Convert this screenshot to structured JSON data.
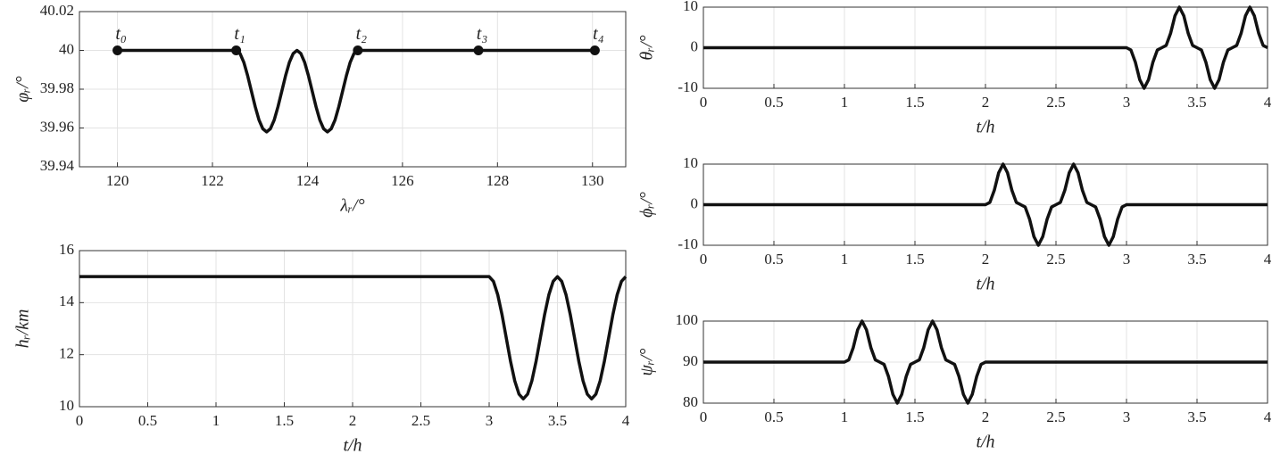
{
  "chart_data": [
    {
      "type": "line",
      "xlabel": "λᵣ/°",
      "ylabel": "φᵣ/°",
      "grid": true,
      "xlim": [
        119.2,
        130.7
      ],
      "ylim": [
        39.94,
        40.02
      ],
      "xticks": [
        120,
        122,
        124,
        126,
        128,
        130
      ],
      "yticks": [
        39.94,
        39.96,
        39.98,
        40,
        40.02
      ],
      "x": [
        120,
        122.5,
        122.58,
        122.66,
        122.74,
        122.82,
        122.9,
        122.98,
        123.06,
        123.14,
        123.22,
        123.3,
        123.38,
        123.46,
        123.54,
        123.62,
        123.7,
        123.78,
        123.86,
        123.94,
        124.02,
        124.1,
        124.18,
        124.26,
        124.34,
        124.42,
        124.5,
        124.58,
        124.66,
        124.74,
        124.82,
        124.9,
        124.98,
        125.06,
        130.05
      ],
      "series": [
        {
          "color": "#111111",
          "values": [
            40,
            40,
            39.9984,
            39.9939,
            39.987,
            39.979,
            39.971,
            39.9641,
            39.9596,
            39.958,
            39.9596,
            39.9641,
            39.971,
            39.979,
            39.987,
            39.9939,
            39.9984,
            40,
            39.9984,
            39.9939,
            39.987,
            39.979,
            39.971,
            39.9641,
            39.9596,
            39.958,
            39.9596,
            39.9641,
            39.971,
            39.979,
            39.987,
            39.9939,
            39.9984,
            40,
            40
          ]
        }
      ],
      "markers": {
        "x": [
          120,
          122.5,
          125.06,
          127.6,
          130.05
        ],
        "y": [
          40,
          40,
          40,
          40,
          40
        ],
        "labels": [
          "t₀",
          "t₁",
          "t₂",
          "t₃",
          "t₄"
        ]
      }
    },
    {
      "type": "line",
      "xlabel": "t/h",
      "ylabel": "hᵣ/km",
      "grid": true,
      "xlim": [
        0,
        4
      ],
      "ylim": [
        10,
        16
      ],
      "xticks": [
        0,
        0.5,
        1,
        1.5,
        2,
        2.5,
        3,
        3.5,
        4
      ],
      "yticks": [
        10,
        12,
        14,
        16
      ],
      "x": [
        0,
        3,
        3.03125,
        3.0625,
        3.09375,
        3.125,
        3.15625,
        3.1875,
        3.21875,
        3.25,
        3.28125,
        3.3125,
        3.34375,
        3.375,
        3.40625,
        3.4375,
        3.46875,
        3.5,
        3.53125,
        3.5625,
        3.59375,
        3.625,
        3.65625,
        3.6875,
        3.71875,
        3.75,
        3.78125,
        3.8125,
        3.84375,
        3.875,
        3.90625,
        3.9375,
        3.96875,
        4
      ],
      "series": [
        {
          "color": "#111111",
          "values": [
            15,
            15,
            14.82,
            14.31,
            13.55,
            12.65,
            11.75,
            10.99,
            10.48,
            10.3,
            10.48,
            10.99,
            11.75,
            12.65,
            13.55,
            14.31,
            14.82,
            15,
            14.82,
            14.31,
            13.55,
            12.65,
            11.75,
            10.99,
            10.48,
            10.3,
            10.48,
            10.99,
            11.75,
            12.65,
            13.55,
            14.31,
            14.82,
            15
          ]
        }
      ]
    },
    {
      "type": "line",
      "xlabel": "t/h",
      "ylabel": "θᵣ/°",
      "grid": true,
      "xlim": [
        0,
        4
      ],
      "ylim": [
        -10,
        10
      ],
      "xticks": [
        0,
        0.5,
        1,
        1.5,
        2,
        2.5,
        3,
        3.5,
        4
      ],
      "yticks": [
        -10,
        0,
        10
      ],
      "x": [
        0,
        3,
        3.03125,
        3.0625,
        3.09375,
        3.125,
        3.15625,
        3.1875,
        3.21875,
        3.25,
        3.28125,
        3.3125,
        3.34375,
        3.375,
        3.40625,
        3.4375,
        3.46875,
        3.5,
        3.53125,
        3.5625,
        3.59375,
        3.625,
        3.65625,
        3.6875,
        3.71875,
        3.75,
        3.78125,
        3.8125,
        3.84375,
        3.875,
        3.90625,
        3.9375,
        3.96875,
        4
      ],
      "series": [
        {
          "color": "#111111",
          "values": [
            0,
            0,
            -0.56,
            -3.54,
            -7.88,
            -10,
            -7.88,
            -3.54,
            -0.56,
            0,
            0.56,
            3.54,
            7.88,
            10,
            7.88,
            3.54,
            0.56,
            0,
            -0.56,
            -3.54,
            -7.88,
            -10,
            -7.88,
            -3.54,
            -0.56,
            0,
            0.56,
            3.54,
            7.88,
            10,
            7.88,
            3.54,
            0.56,
            0
          ]
        }
      ]
    },
    {
      "type": "line",
      "xlabel": "t/h",
      "ylabel": "ϕᵣ/°",
      "grid": true,
      "xlim": [
        0,
        4
      ],
      "ylim": [
        -10,
        10
      ],
      "xticks": [
        0,
        0.5,
        1,
        1.5,
        2,
        2.5,
        3,
        3.5,
        4
      ],
      "yticks": [
        -10,
        0,
        10
      ],
      "x": [
        0,
        2,
        2.03125,
        2.0625,
        2.09375,
        2.125,
        2.15625,
        2.1875,
        2.21875,
        2.25,
        2.28125,
        2.3125,
        2.34375,
        2.375,
        2.40625,
        2.4375,
        2.46875,
        2.5,
        2.53125,
        2.5625,
        2.59375,
        2.625,
        2.65625,
        2.6875,
        2.71875,
        2.75,
        2.78125,
        2.8125,
        2.84375,
        2.875,
        2.90625,
        2.9375,
        2.96875,
        3,
        4
      ],
      "series": [
        {
          "color": "#111111",
          "values": [
            0,
            0,
            0.56,
            3.54,
            7.88,
            10,
            7.88,
            3.54,
            0.56,
            0,
            -0.56,
            -3.54,
            -7.88,
            -10,
            -7.88,
            -3.54,
            -0.56,
            0,
            0.56,
            3.54,
            7.88,
            10,
            7.88,
            3.54,
            0.56,
            0,
            -0.56,
            -3.54,
            -7.88,
            -10,
            -7.88,
            -3.54,
            -0.56,
            0,
            0
          ]
        }
      ]
    },
    {
      "type": "line",
      "xlabel": "t/h",
      "ylabel": "ψᵣ/°",
      "grid": true,
      "xlim": [
        0,
        4
      ],
      "ylim": [
        80,
        100
      ],
      "xticks": [
        0,
        0.5,
        1,
        1.5,
        2,
        2.5,
        3,
        3.5,
        4
      ],
      "yticks": [
        80,
        90,
        100
      ],
      "x": [
        0,
        1,
        1.03125,
        1.0625,
        1.09375,
        1.125,
        1.15625,
        1.1875,
        1.21875,
        1.25,
        1.28125,
        1.3125,
        1.34375,
        1.375,
        1.40625,
        1.4375,
        1.46875,
        1.5,
        1.53125,
        1.5625,
        1.59375,
        1.625,
        1.65625,
        1.6875,
        1.71875,
        1.75,
        1.78125,
        1.8125,
        1.84375,
        1.875,
        1.90625,
        1.9375,
        1.96875,
        2,
        4
      ],
      "series": [
        {
          "color": "#111111",
          "values": [
            90,
            90,
            90.56,
            93.54,
            97.88,
            100,
            97.88,
            93.54,
            90.56,
            90,
            89.44,
            86.46,
            82.12,
            80,
            82.12,
            86.46,
            89.44,
            90,
            90.56,
            93.54,
            97.88,
            100,
            97.88,
            93.54,
            90.56,
            90,
            89.44,
            86.46,
            82.12,
            80,
            82.12,
            86.46,
            89.44,
            90,
            90
          ]
        }
      ]
    }
  ]
}
